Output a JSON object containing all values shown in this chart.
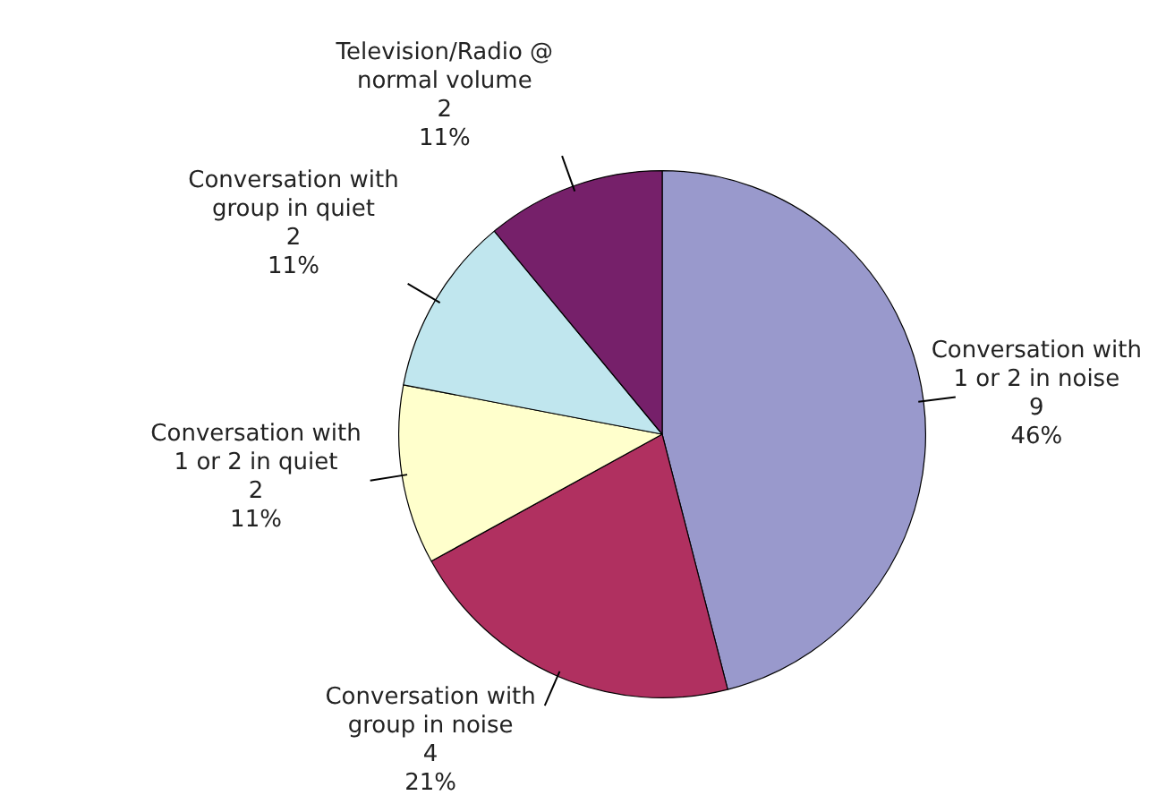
{
  "chart_data": {
    "type": "pie",
    "categories": [
      "Conversation with 1 or 2 in noise",
      "Conversation with group in noise",
      "Conversation with 1 or 2 in quiet",
      "Conversation with group in quiet",
      "Television/Radio @ normal volume"
    ],
    "values": [
      46,
      21,
      11,
      11,
      11
    ],
    "value_labels": [
      "9\n46%",
      "4\n21%",
      "2\n11%",
      "2\n11%",
      "2\n11%"
    ],
    "colors": [
      "#9999cc",
      "#b03060",
      "#ffffcc",
      "#c0e6ee",
      "#76206a"
    ],
    "legend": false
  }
}
